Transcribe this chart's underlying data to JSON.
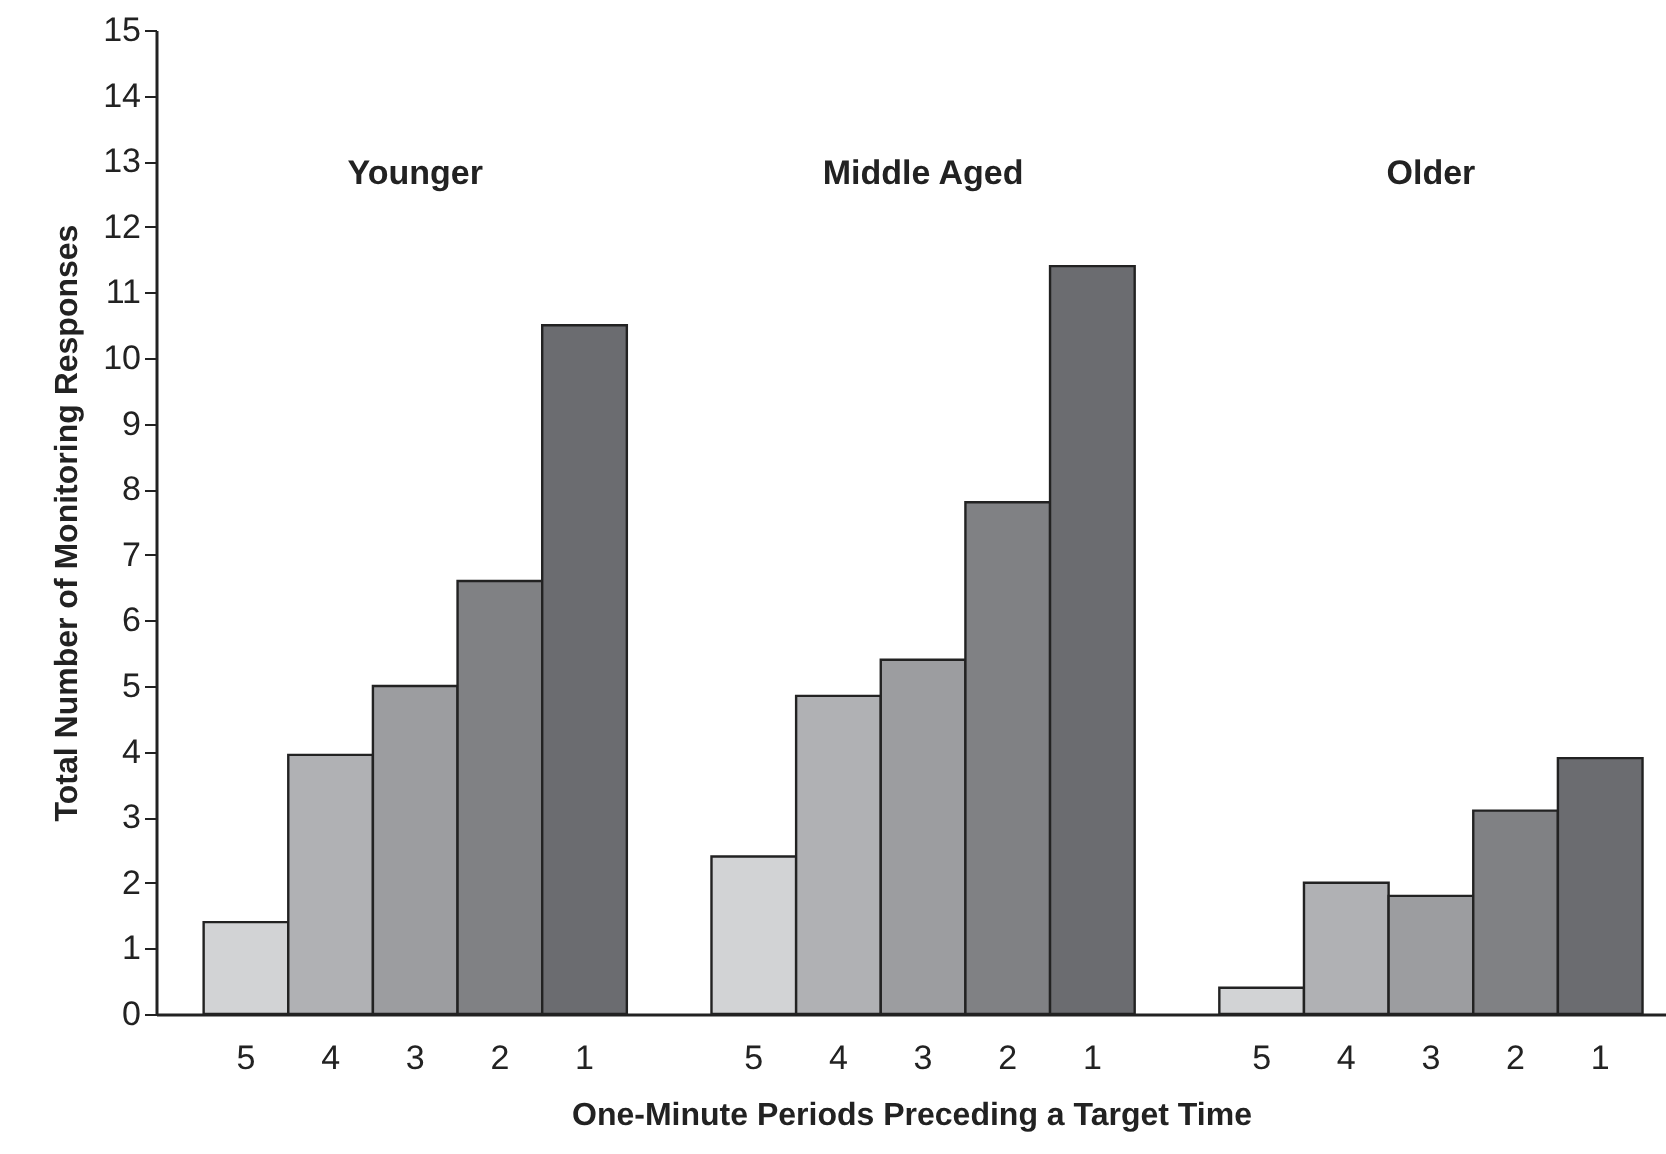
{
  "chart_data": {
    "type": "bar",
    "xlabel": "One-Minute Periods Preceding a Target Time",
    "ylabel": "Total Number of Monitoring Responses",
    "categories": [
      "5",
      "4",
      "3",
      "2",
      "1",
      null,
      "5",
      "4",
      "3",
      "2",
      "1",
      null,
      "5",
      "4",
      "3",
      "2",
      "1"
    ],
    "values": [
      1.4,
      3.95,
      5.0,
      6.6,
      10.5,
      null,
      2.4,
      4.85,
      5.4,
      7.8,
      11.4,
      null,
      0.4,
      2.0,
      1.8,
      3.1,
      3.9
    ],
    "colors": [
      "#d2d3d5",
      "#b0b1b4",
      "#9c9da0",
      "#808184",
      "#6b6c70",
      "#ffffff",
      "#d2d3d5",
      "#b0b1b4",
      "#9c9da0",
      "#808184",
      "#6b6c70",
      "#ffffff",
      "#d2d3d5",
      "#b0b1b4",
      "#9c9da0",
      "#808184",
      "#6b6c70"
    ],
    "annotations": [
      "Younger",
      "Middle Aged",
      "Older"
    ],
    "ylim": [
      0,
      15
    ],
    "yticks": [
      0,
      1,
      2,
      3,
      4,
      5,
      6,
      7,
      8,
      9,
      10,
      11,
      12,
      13,
      14,
      15
    ],
    "grid": false
  }
}
